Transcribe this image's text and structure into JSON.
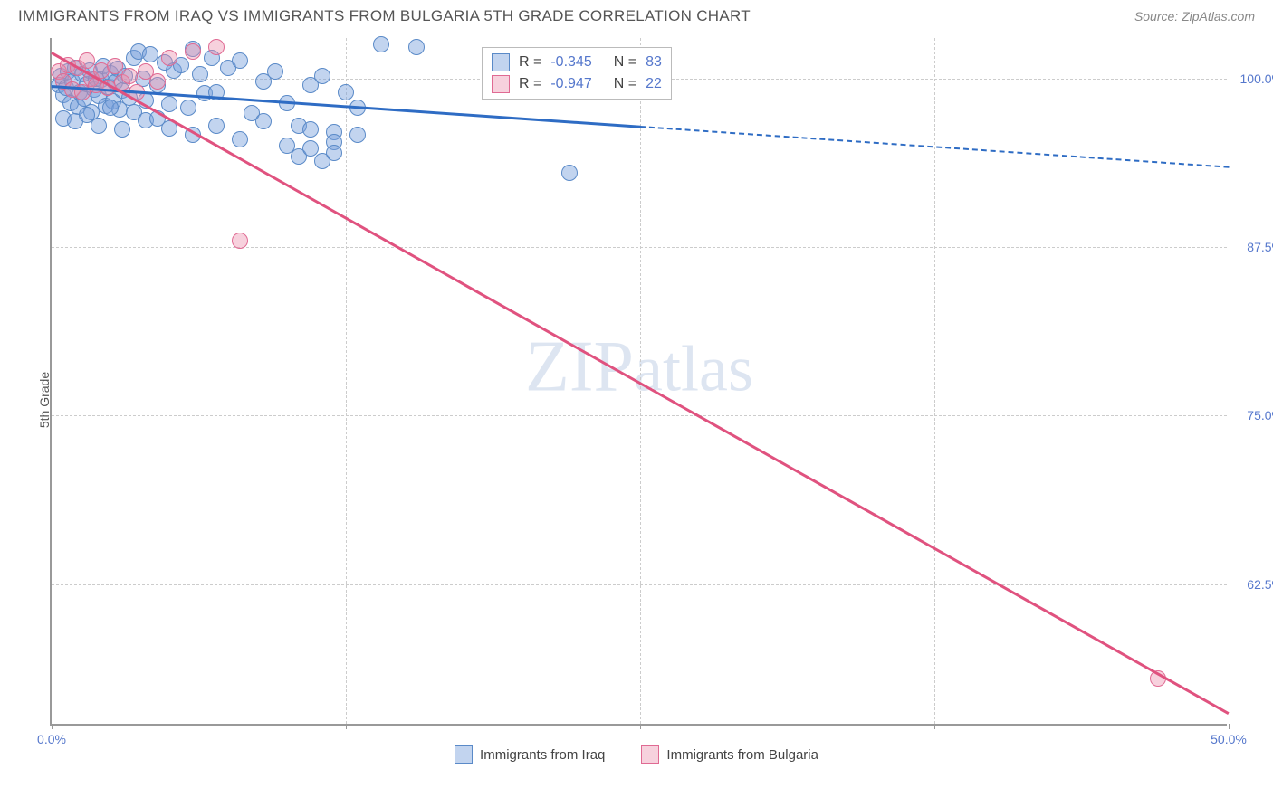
{
  "title": "IMMIGRANTS FROM IRAQ VS IMMIGRANTS FROM BULGARIA 5TH GRADE CORRELATION CHART",
  "source_label": "Source: ZipAtlas.com",
  "ylabel": "5th Grade",
  "watermark": "ZIPatlas",
  "chart": {
    "type": "scatter",
    "xlim": [
      0,
      50
    ],
    "ylim": [
      52,
      103
    ],
    "xticks": [
      {
        "value": 0,
        "label": "0.0%"
      },
      {
        "value": 12.5,
        "label": ""
      },
      {
        "value": 25,
        "label": ""
      },
      {
        "value": 37.5,
        "label": ""
      },
      {
        "value": 50,
        "label": "50.0%"
      }
    ],
    "yticks": [
      {
        "value": 62.5,
        "label": "62.5%"
      },
      {
        "value": 75.0,
        "label": "75.0%"
      },
      {
        "value": 87.5,
        "label": "87.5%"
      },
      {
        "value": 100.0,
        "label": "100.0%"
      }
    ],
    "background_color": "#ffffff",
    "grid_color": "#cccccc",
    "series": [
      {
        "name": "Immigrants from Iraq",
        "color_fill": "rgba(120,160,220,0.45)",
        "color_stroke": "#5a8ac8",
        "marker_radius": 9,
        "points": [
          [
            0.3,
            99.5
          ],
          [
            0.4,
            100.2
          ],
          [
            0.5,
            98.8
          ],
          [
            0.6,
            99.3
          ],
          [
            0.7,
            100.5
          ],
          [
            0.8,
            98.2
          ],
          [
            0.9,
            99.8
          ],
          [
            1.0,
            100.8
          ],
          [
            1.1,
            97.9
          ],
          [
            1.2,
            99.0
          ],
          [
            1.3,
            100.3
          ],
          [
            1.4,
            98.5
          ],
          [
            1.5,
            99.6
          ],
          [
            1.6,
            100.6
          ],
          [
            1.7,
            97.5
          ],
          [
            1.8,
            99.2
          ],
          [
            1.9,
            100.0
          ],
          [
            2.0,
            98.7
          ],
          [
            2.1,
            99.9
          ],
          [
            2.2,
            100.9
          ],
          [
            2.3,
            98.0
          ],
          [
            2.4,
            99.4
          ],
          [
            2.5,
            100.4
          ],
          [
            2.6,
            98.3
          ],
          [
            2.7,
            99.7
          ],
          [
            2.8,
            100.7
          ],
          [
            2.9,
            97.7
          ],
          [
            3.0,
            99.1
          ],
          [
            3.1,
            100.2
          ],
          [
            3.3,
            98.6
          ],
          [
            3.5,
            101.5
          ],
          [
            3.7,
            102.0
          ],
          [
            3.9,
            100.0
          ],
          [
            4.0,
            98.4
          ],
          [
            4.2,
            101.8
          ],
          [
            4.5,
            99.5
          ],
          [
            4.8,
            101.2
          ],
          [
            5.0,
            98.1
          ],
          [
            5.2,
            100.6
          ],
          [
            5.5,
            101.0
          ],
          [
            5.8,
            97.8
          ],
          [
            6.0,
            102.2
          ],
          [
            6.3,
            100.3
          ],
          [
            6.5,
            98.9
          ],
          [
            6.8,
            101.5
          ],
          [
            7.0,
            99.0
          ],
          [
            7.5,
            100.8
          ],
          [
            8.0,
            101.3
          ],
          [
            8.5,
            97.4
          ],
          [
            9.0,
            99.8
          ],
          [
            9.5,
            100.5
          ],
          [
            10.0,
            98.2
          ],
          [
            10.5,
            96.5
          ],
          [
            11.0,
            99.5
          ],
          [
            11.5,
            100.2
          ],
          [
            12.0,
            96.0
          ],
          [
            12.5,
            99.0
          ],
          [
            13.0,
            97.8
          ],
          [
            14.0,
            102.5
          ],
          [
            15.5,
            102.3
          ],
          [
            0.5,
            97.0
          ],
          [
            1.0,
            96.8
          ],
          [
            1.5,
            97.3
          ],
          [
            2.0,
            96.5
          ],
          [
            2.5,
            97.8
          ],
          [
            3.0,
            96.2
          ],
          [
            3.5,
            97.5
          ],
          [
            4.0,
            96.9
          ],
          [
            4.5,
            97.0
          ],
          [
            5.0,
            96.3
          ],
          [
            6.0,
            95.8
          ],
          [
            7.0,
            96.5
          ],
          [
            8.0,
            95.5
          ],
          [
            9.0,
            96.8
          ],
          [
            10.0,
            95.0
          ],
          [
            11.0,
            96.2
          ],
          [
            12.0,
            95.3
          ],
          [
            13.0,
            95.8
          ],
          [
            10.5,
            94.2
          ],
          [
            11.0,
            94.8
          ],
          [
            11.5,
            93.9
          ],
          [
            12.0,
            94.5
          ],
          [
            22.0,
            93.0
          ]
        ],
        "trend": {
          "color": "#2e6cc4",
          "x1": 0,
          "y1": 99.5,
          "x2": 25,
          "y2": 96.5,
          "dashed_x2": 50,
          "dashed_y2": 93.5
        }
      },
      {
        "name": "Immigrants from Bulgria",
        "color_fill": "rgba(235,140,170,0.40)",
        "color_stroke": "#e06a93",
        "marker_radius": 9,
        "points": [
          [
            0.3,
            100.5
          ],
          [
            0.5,
            99.8
          ],
          [
            0.7,
            101.0
          ],
          [
            0.9,
            99.2
          ],
          [
            1.1,
            100.8
          ],
          [
            1.3,
            99.0
          ],
          [
            1.5,
            101.3
          ],
          [
            1.7,
            100.0
          ],
          [
            1.9,
            99.5
          ],
          [
            2.1,
            100.6
          ],
          [
            2.4,
            99.3
          ],
          [
            2.7,
            100.9
          ],
          [
            3.0,
            99.7
          ],
          [
            3.3,
            100.2
          ],
          [
            3.6,
            99.0
          ],
          [
            4.0,
            100.5
          ],
          [
            4.5,
            99.8
          ],
          [
            5.0,
            101.5
          ],
          [
            6.0,
            102.0
          ],
          [
            7.0,
            102.3
          ],
          [
            8.0,
            88.0
          ],
          [
            47.0,
            55.5
          ]
        ],
        "trend": {
          "color": "#e0527f",
          "x1": 0,
          "y1": 102.0,
          "x2": 50,
          "y2": 53.0
        }
      }
    ],
    "legend_stats": [
      {
        "swatch_fill": "rgba(120,160,220,0.45)",
        "swatch_stroke": "#5a8ac8",
        "R": "-0.345",
        "N": "83"
      },
      {
        "swatch_fill": "rgba(235,140,170,0.40)",
        "swatch_stroke": "#e06a93",
        "R": "-0.947",
        "N": "22"
      }
    ],
    "bottom_legend": [
      {
        "swatch_fill": "rgba(120,160,220,0.45)",
        "swatch_stroke": "#5a8ac8",
        "label": "Immigrants from Iraq"
      },
      {
        "swatch_fill": "rgba(235,140,170,0.40)",
        "swatch_stroke": "#e06a93",
        "label": "Immigrants from Bulgaria"
      }
    ]
  }
}
